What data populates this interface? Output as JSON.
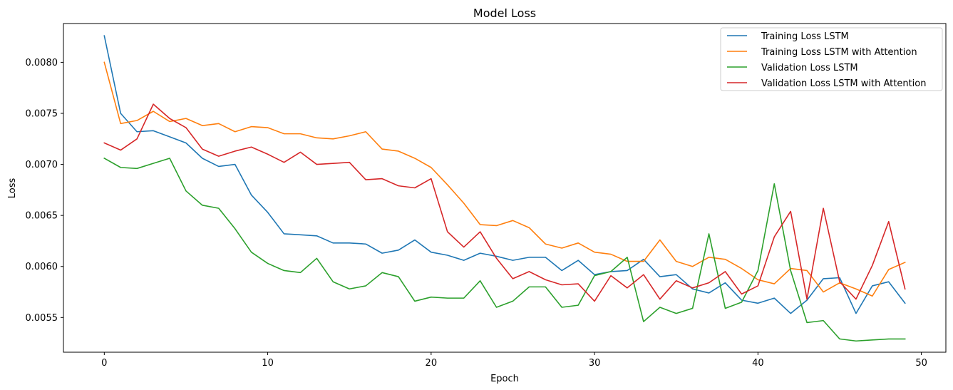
{
  "chart_data": {
    "type": "line",
    "title": "Model Loss",
    "xlabel": "Epoch",
    "ylabel": "Loss",
    "xlim": [
      -2.5,
      51.5
    ],
    "ylim": [
      0.00516,
      0.00838
    ],
    "xticks": [
      0,
      10,
      20,
      30,
      40,
      50
    ],
    "xtick_labels": [
      "0",
      "10",
      "20",
      "30",
      "40",
      "50"
    ],
    "yticks": [
      0.0055,
      0.006,
      0.0065,
      0.007,
      0.0075,
      0.008
    ],
    "ytick_labels": [
      "0.0055",
      "0.0060",
      "0.0065",
      "0.0070",
      "0.0075",
      "0.0080"
    ],
    "grid": false,
    "legend_position": "top-right",
    "x": [
      0,
      1,
      2,
      3,
      4,
      5,
      6,
      7,
      8,
      9,
      10,
      11,
      12,
      13,
      14,
      15,
      16,
      17,
      18,
      19,
      20,
      21,
      22,
      23,
      24,
      25,
      26,
      27,
      28,
      29,
      30,
      31,
      32,
      33,
      34,
      35,
      36,
      37,
      38,
      39,
      40,
      41,
      42,
      43,
      44,
      45,
      46,
      47,
      48,
      49
    ],
    "series": [
      {
        "name": "Training Loss LSTM",
        "color": "#1f77b4",
        "values": [
          0.00826,
          0.0075,
          0.00732,
          0.00733,
          0.00727,
          0.00721,
          0.00706,
          0.00698,
          0.007,
          0.0067,
          0.00653,
          0.00632,
          0.00631,
          0.0063,
          0.00623,
          0.00623,
          0.00622,
          0.00613,
          0.00616,
          0.00626,
          0.00614,
          0.00611,
          0.00606,
          0.00613,
          0.0061,
          0.00606,
          0.00609,
          0.00609,
          0.00596,
          0.00606,
          0.00592,
          0.00595,
          0.00596,
          0.00607,
          0.0059,
          0.00592,
          0.00578,
          0.00574,
          0.00584,
          0.00567,
          0.00564,
          0.00569,
          0.00554,
          0.00567,
          0.00588,
          0.00589,
          0.00554,
          0.00581,
          0.00585,
          0.00564
        ]
      },
      {
        "name": "Training Loss LSTM with Attention",
        "color": "#ff7f0e",
        "values": [
          0.008,
          0.0074,
          0.00743,
          0.00752,
          0.00742,
          0.00745,
          0.00738,
          0.0074,
          0.00732,
          0.00737,
          0.00736,
          0.0073,
          0.0073,
          0.00726,
          0.00725,
          0.00728,
          0.00732,
          0.00715,
          0.00713,
          0.00706,
          0.00697,
          0.0068,
          0.00662,
          0.00641,
          0.0064,
          0.00645,
          0.00638,
          0.00622,
          0.00618,
          0.00623,
          0.00614,
          0.00612,
          0.00605,
          0.00605,
          0.00626,
          0.00605,
          0.006,
          0.00609,
          0.00607,
          0.00598,
          0.00587,
          0.00583,
          0.00598,
          0.00596,
          0.00575,
          0.00584,
          0.00578,
          0.00571,
          0.00597,
          0.00604
        ]
      },
      {
        "name": "Validation Loss LSTM",
        "color": "#2ca02c",
        "values": [
          0.00706,
          0.00697,
          0.00696,
          0.00701,
          0.00706,
          0.00674,
          0.0066,
          0.00657,
          0.00637,
          0.00614,
          0.00603,
          0.00596,
          0.00594,
          0.00608,
          0.00585,
          0.00578,
          0.00581,
          0.00594,
          0.0059,
          0.00566,
          0.0057,
          0.00569,
          0.00569,
          0.00586,
          0.0056,
          0.00566,
          0.0058,
          0.0058,
          0.0056,
          0.00562,
          0.00591,
          0.00595,
          0.00609,
          0.00546,
          0.0056,
          0.00554,
          0.00559,
          0.00632,
          0.00559,
          0.00565,
          0.00596,
          0.00681,
          0.00596,
          0.00545,
          0.00547,
          0.00529,
          0.00527,
          0.00528,
          0.00529,
          0.00529
        ]
      },
      {
        "name": "Validation Loss LSTM with Attention",
        "color": "#d62728",
        "values": [
          0.00721,
          0.00714,
          0.00725,
          0.00759,
          0.00745,
          0.00736,
          0.00715,
          0.00708,
          0.00713,
          0.00717,
          0.0071,
          0.00702,
          0.00712,
          0.007,
          0.00701,
          0.00702,
          0.00685,
          0.00686,
          0.00679,
          0.00677,
          0.00686,
          0.00634,
          0.00619,
          0.00634,
          0.00608,
          0.00588,
          0.00595,
          0.00587,
          0.00582,
          0.00583,
          0.00566,
          0.00591,
          0.00579,
          0.00592,
          0.00568,
          0.00586,
          0.00579,
          0.00584,
          0.00595,
          0.00573,
          0.00581,
          0.00629,
          0.00654,
          0.00568,
          0.00657,
          0.00585,
          0.00568,
          0.00601,
          0.00644,
          0.00578
        ]
      }
    ]
  }
}
